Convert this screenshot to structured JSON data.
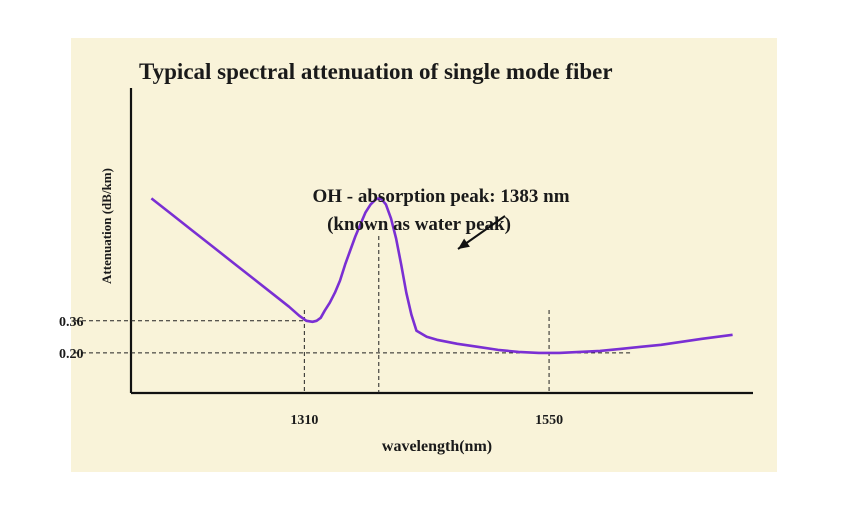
{
  "chart_data": {
    "type": "line",
    "title": "Typical spectral attenuation of single mode fiber",
    "xlabel": "wavelength(nm)",
    "ylabel": "Attenuation  (dB/km)",
    "x_ticks": [
      1310,
      1550
    ],
    "y_ticks": [
      0.36,
      0.2
    ],
    "xlim": [
      1140,
      1750
    ],
    "ylim": [
      0.0,
      1.52
    ],
    "grid": false,
    "annotation": {
      "line1": "OH - absorption peak: 1383 nm",
      "line2": "(known as water peak)",
      "x": 1383
    },
    "series": [
      {
        "color": "#7a2fd3",
        "x": [
          1160,
          1180,
          1200,
          1220,
          1240,
          1260,
          1280,
          1295,
          1305,
          1312,
          1318,
          1322,
          1326,
          1330,
          1335,
          1340,
          1345,
          1350,
          1355,
          1360,
          1365,
          1370,
          1375,
          1380,
          1383,
          1386,
          1390,
          1395,
          1400,
          1405,
          1410,
          1415,
          1420,
          1430,
          1440,
          1460,
          1480,
          1500,
          1520,
          1540,
          1550,
          1560,
          1580,
          1600,
          1620,
          1640,
          1660,
          1680,
          1700,
          1730
        ],
        "y": [
          0.97,
          0.89,
          0.81,
          0.73,
          0.65,
          0.57,
          0.49,
          0.43,
          0.385,
          0.36,
          0.355,
          0.36,
          0.375,
          0.41,
          0.45,
          0.5,
          0.56,
          0.64,
          0.71,
          0.78,
          0.84,
          0.9,
          0.94,
          0.965,
          0.97,
          0.965,
          0.94,
          0.87,
          0.77,
          0.64,
          0.5,
          0.39,
          0.31,
          0.28,
          0.265,
          0.245,
          0.23,
          0.215,
          0.205,
          0.2,
          0.2,
          0.2,
          0.205,
          0.21,
          0.22,
          0.23,
          0.24,
          0.255,
          0.27,
          0.29
        ]
      }
    ]
  }
}
